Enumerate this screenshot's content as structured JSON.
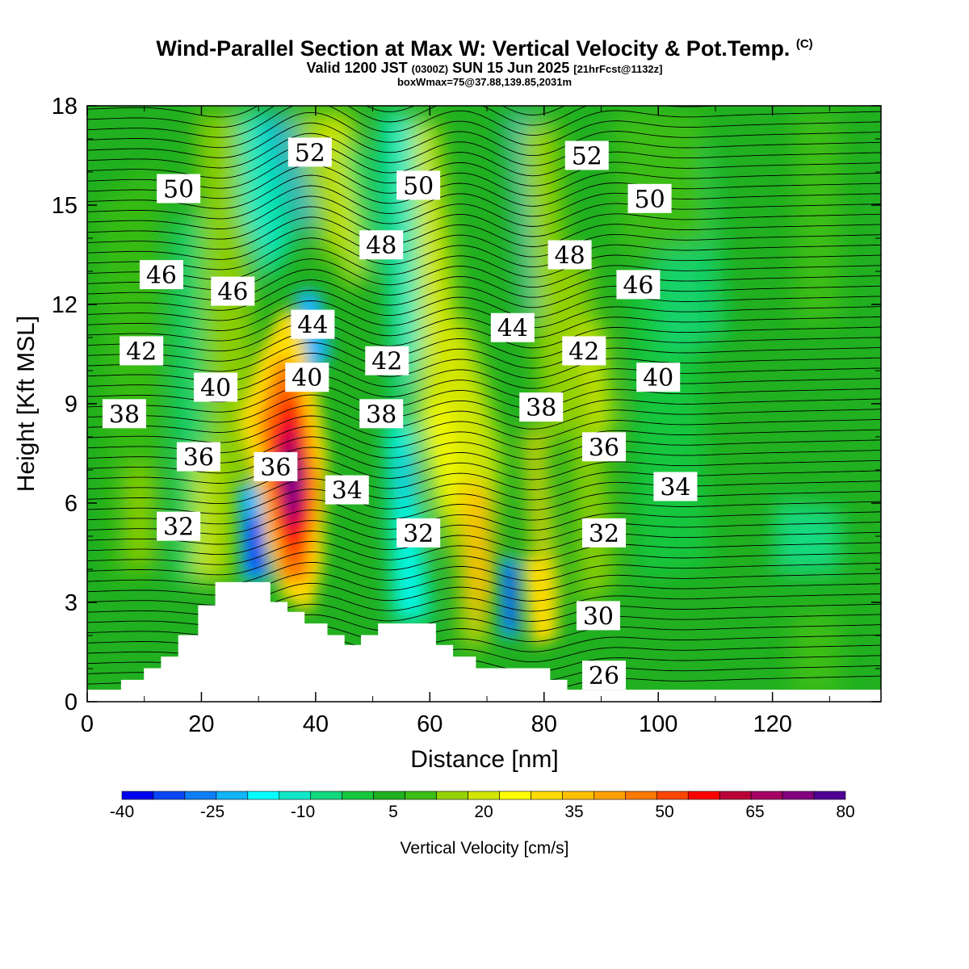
{
  "header": {
    "title": "Wind-Parallel Section at Max W: Vertical Velocity & Pot.Temp.",
    "copyright": "(C)",
    "valid_prefix": "Valid 1200 JST",
    "valid_utc": "(0300Z)",
    "valid_date": "SUN 15 Jun 2025",
    "forecast": "[21hrFcst@1132z]",
    "box_info": "boxWmax=75@37.88,139.85,2031m"
  },
  "chart_data": {
    "type": "heatmap",
    "xlabel": "Distance [nm]",
    "ylabel": "Height [Kft MSL]",
    "xlim": [
      0,
      139
    ],
    "ylim": [
      0,
      18
    ],
    "xticks": [
      "0",
      "20",
      "40",
      "60",
      "80",
      "100",
      "120"
    ],
    "yticks": [
      "0",
      "3",
      "6",
      "9",
      "12",
      "15",
      "18"
    ],
    "colorbar": {
      "label": "Vertical Velocity [cm/s]",
      "tick_labels": [
        "-40",
        "-25",
        "-10",
        "5",
        "20",
        "35",
        "50",
        "65",
        "80"
      ],
      "range": [
        -40,
        80
      ],
      "step": 5,
      "colors": [
        "#0000f0",
        "#0a46f5",
        "#0f7ef8",
        "#12b4fa",
        "#00ffff",
        "#10e8c8",
        "#12d87e",
        "#16c63c",
        "#20b020",
        "#3cbe14",
        "#96d200",
        "#d2e600",
        "#ffff00",
        "#ffdc00",
        "#ffc000",
        "#ffa000",
        "#ff7800",
        "#ff4600",
        "#ff0000",
        "#b90037",
        "#a50064",
        "#82007d",
        "#500096"
      ]
    },
    "contour_labels": [
      {
        "text": "52",
        "x": 39,
        "y": 16.6
      },
      {
        "text": "52",
        "x": 87.5,
        "y": 16.5
      },
      {
        "text": "50",
        "x": 16,
        "y": 15.5
      },
      {
        "text": "50",
        "x": 58,
        "y": 15.6
      },
      {
        "text": "50",
        "x": 98.5,
        "y": 15.2
      },
      {
        "text": "48",
        "x": 51.5,
        "y": 13.8
      },
      {
        "text": "48",
        "x": 84.5,
        "y": 13.5
      },
      {
        "text": "46",
        "x": 13,
        "y": 12.9
      },
      {
        "text": "46",
        "x": 25.5,
        "y": 12.4
      },
      {
        "text": "46",
        "x": 96.5,
        "y": 12.6
      },
      {
        "text": "44",
        "x": 39.5,
        "y": 11.4
      },
      {
        "text": "44",
        "x": 74.5,
        "y": 11.3
      },
      {
        "text": "42",
        "x": 9.5,
        "y": 10.6
      },
      {
        "text": "42",
        "x": 52.5,
        "y": 10.3
      },
      {
        "text": "42",
        "x": 87,
        "y": 10.6
      },
      {
        "text": "40",
        "x": 22.5,
        "y": 9.5
      },
      {
        "text": "40",
        "x": 38.5,
        "y": 9.8
      },
      {
        "text": "40",
        "x": 100,
        "y": 9.8
      },
      {
        "text": "38",
        "x": 6.5,
        "y": 8.7
      },
      {
        "text": "38",
        "x": 51.5,
        "y": 8.7
      },
      {
        "text": "38",
        "x": 79.5,
        "y": 8.9
      },
      {
        "text": "36",
        "x": 19.5,
        "y": 7.4
      },
      {
        "text": "36",
        "x": 33,
        "y": 7.1
      },
      {
        "text": "36",
        "x": 90.5,
        "y": 7.7
      },
      {
        "text": "34",
        "x": 45.5,
        "y": 6.4
      },
      {
        "text": "34",
        "x": 103,
        "y": 6.5
      },
      {
        "text": "32",
        "x": 16,
        "y": 5.3
      },
      {
        "text": "32",
        "x": 58,
        "y": 5.1
      },
      {
        "text": "32",
        "x": 90.5,
        "y": 5.1
      },
      {
        "text": "30",
        "x": 89.5,
        "y": 2.6
      },
      {
        "text": "26",
        "x": 90.5,
        "y": 0.8
      }
    ],
    "terrain_profile": [
      [
        0,
        0.35
      ],
      [
        6,
        0.35
      ],
      [
        6,
        0.65
      ],
      [
        10,
        0.65
      ],
      [
        10,
        1.0
      ],
      [
        13,
        1.0
      ],
      [
        13,
        1.35
      ],
      [
        16,
        1.35
      ],
      [
        16,
        2.0
      ],
      [
        19.5,
        2.0
      ],
      [
        19.5,
        2.9
      ],
      [
        22.5,
        2.9
      ],
      [
        22.5,
        3.6
      ],
      [
        32,
        3.6
      ],
      [
        32,
        3.0
      ],
      [
        35,
        3.0
      ],
      [
        35,
        2.7
      ],
      [
        38,
        2.7
      ],
      [
        38,
        2.35
      ],
      [
        42,
        2.35
      ],
      [
        42,
        2.0
      ],
      [
        45,
        2.0
      ],
      [
        45,
        1.7
      ],
      [
        48,
        1.7
      ],
      [
        48,
        2.0
      ],
      [
        51,
        2.0
      ],
      [
        51,
        2.35
      ],
      [
        61,
        2.35
      ],
      [
        61,
        1.7
      ],
      [
        64,
        1.7
      ],
      [
        64,
        1.35
      ],
      [
        68,
        1.35
      ],
      [
        68,
        1.0
      ],
      [
        81,
        1.0
      ],
      [
        81,
        0.65
      ],
      [
        84,
        0.65
      ],
      [
        84,
        0.35
      ],
      [
        139,
        0.35
      ]
    ]
  }
}
